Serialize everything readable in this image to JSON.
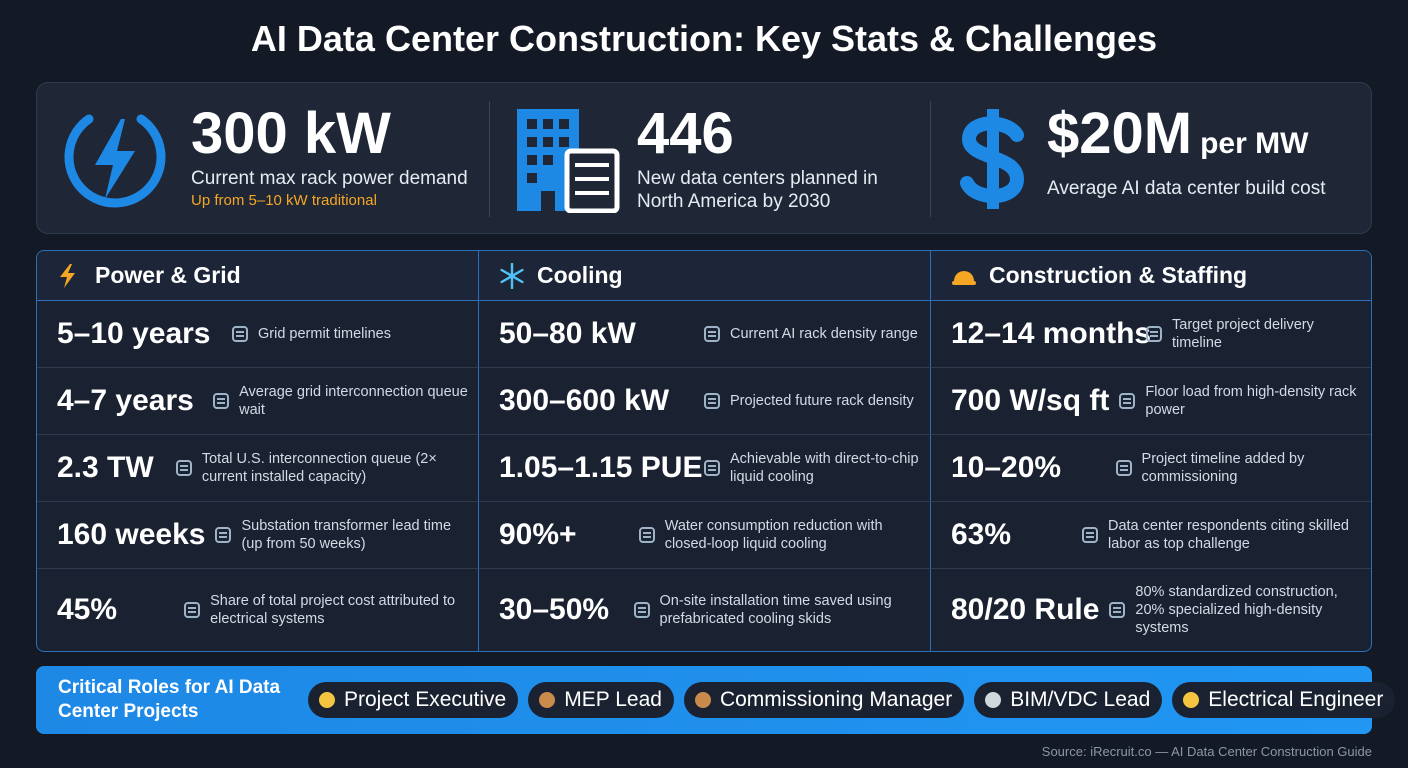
{
  "title": "AI Data Center Construction: Key Stats & Challenges",
  "hero": [
    {
      "value": "300 kW",
      "label": "Current max rack power demand",
      "note": "Up from 5–10 kW traditional"
    },
    {
      "value": "446",
      "label": "New data centers planned in North America by 2030"
    },
    {
      "value": "$20M",
      "unit": "per MW",
      "label": "Average AI data center build cost"
    }
  ],
  "columns": [
    {
      "title": "Power & Grid",
      "rows": [
        {
          "value": "5–10 years",
          "desc": "Grid permit timelines"
        },
        {
          "value": "4–7 years",
          "desc": "Average grid interconnection queue wait"
        },
        {
          "value": "2.3 TW",
          "desc": "Total U.S. interconnection queue (2× current installed capacity)"
        },
        {
          "value": "160 weeks",
          "desc": "Substation transformer lead time (up from 50 weeks)"
        },
        {
          "value": "45%",
          "desc": "Share of total project cost attributed to electrical systems"
        }
      ]
    },
    {
      "title": "Cooling",
      "rows": [
        {
          "value": "50–80 kW",
          "desc": "Current AI rack density range"
        },
        {
          "value": "300–600 kW",
          "desc": "Projected future rack density"
        },
        {
          "value": "1.05–1.15 PUE",
          "desc": "Achievable with direct-to-chip liquid cooling"
        },
        {
          "value": "90%+",
          "desc": "Water consumption reduction with closed-loop liquid cooling"
        },
        {
          "value": "30–50%",
          "desc": "On-site installation time saved using prefabricated cooling skids"
        }
      ]
    },
    {
      "title": "Construction & Staffing",
      "rows": [
        {
          "value": "12–14 months",
          "desc": "Target project delivery timeline"
        },
        {
          "value": "700 W/sq ft",
          "desc": "Floor load from high-density rack power"
        },
        {
          "value": "10–20%",
          "desc": "Project timeline added by commissioning"
        },
        {
          "value": "63%",
          "desc": "Data center respondents citing skilled labor as top challenge"
        },
        {
          "value": "80/20 Rule",
          "desc": "80% standardized construction, 20% specialized high-density systems"
        }
      ]
    }
  ],
  "roles": {
    "heading": "Critical Roles for AI Data Center Projects",
    "items": [
      "Project Executive",
      "MEP Lead",
      "Commissioning Manager",
      "BIM/VDC Lead",
      "Electrical Engineer"
    ]
  },
  "source": "Source: iRecruit.co — AI Data Center Construction Guide"
}
